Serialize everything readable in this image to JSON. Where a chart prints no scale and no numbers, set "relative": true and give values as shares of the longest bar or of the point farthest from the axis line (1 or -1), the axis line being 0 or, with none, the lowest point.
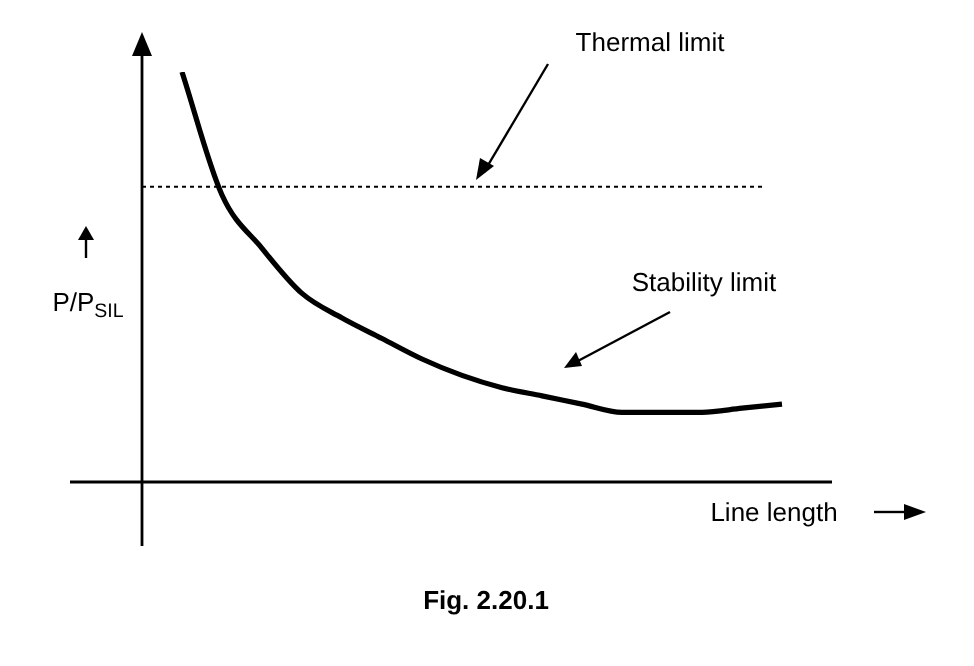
{
  "chart_data": {
    "type": "line",
    "relative": true,
    "xlabel": "Line length",
    "ylabel": "P/P$_{SIL}$",
    "categories": [
      null,
      null,
      null,
      null,
      null,
      null,
      null,
      null,
      null,
      null,
      null,
      null,
      null,
      null,
      null,
      null,
      null
    ],
    "series": [
      {
        "color": "#000000",
        "values": [
          null,
          1.0,
          0.7,
          0.57,
          0.46,
          0.4,
          0.35,
          0.3,
          0.26,
          0.23,
          0.21,
          0.19,
          0.17,
          0.17,
          0.17,
          0.18,
          0.19
        ]
      }
    ],
    "ref_lines": [
      {
        "axis": "y",
        "value": 0.72,
        "label": "Thermal limit",
        "color": "#000000",
        "line_style": "dotted"
      }
    ],
    "annotations": [
      "Stability limit",
      "Fig. 2.20.1"
    ],
    "legend": false,
    "marker": "none",
    "line_style": "solid"
  }
}
